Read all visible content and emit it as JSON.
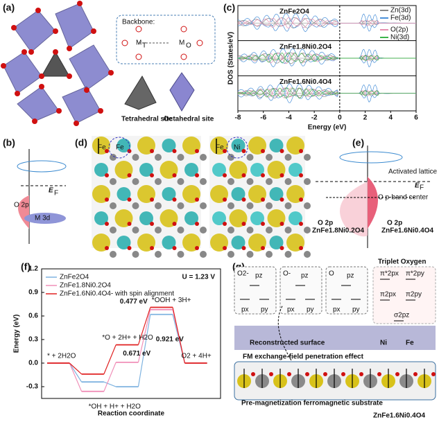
{
  "panels": {
    "a": {
      "label": "(a)",
      "backbone": "Backbone:",
      "m_t": "M",
      "m_t_sub": "T",
      "m_o": "M",
      "m_o_sub": "O",
      "atom_o": "O",
      "tetrahedral": "Tetrahedral site",
      "octahedral": "Octahedral site"
    },
    "b": {
      "label": "(b)",
      "ef": "E",
      "ef_sub": "F",
      "o2p": "O 2p",
      "m3d": "M 3d"
    },
    "c": {
      "label": "(c)",
      "subplots": [
        "ZnFe2O4",
        "ZnFe1.8Ni0.2O4",
        "ZnFe1.6Ni0.4O4"
      ],
      "legend": [
        {
          "name": "Zn(3d)",
          "color": "#888888"
        },
        {
          "name": "Fe(3d)",
          "color": "#4a90d9"
        },
        {
          "name": "O(2p)",
          "color": "#e58fb0"
        },
        {
          "name": "Ni(3d)",
          "color": "#3cb44b"
        }
      ],
      "xlabel": "Energy (eV)",
      "ylabel": "DOS (States/eV)",
      "xlim": [
        -8,
        6
      ],
      "xticks": [
        -8,
        -6,
        -4,
        -2,
        0,
        2,
        4,
        6
      ]
    },
    "d": {
      "label": "(d)",
      "fe": "Fe",
      "ni": "Ni"
    },
    "e": {
      "label": "(e)",
      "activated": "Activated lattice O",
      "ef": "E",
      "ef_sub": "F",
      "center": "O p-band center",
      "left_orbital": "O 2p",
      "left_material": "ZnFe1.8Ni0.2O4",
      "right_orbital": "O 2p",
      "right_material": "ZnFe1.6Ni0.4O4"
    },
    "g": {
      "label": "(g)",
      "triplet": "Triplet Oxygen",
      "boxes": [
        {
          "ion": "O2-",
          "pz": "pz",
          "px": "px",
          "py": "py"
        },
        {
          "ion": "O-",
          "pz": "pz",
          "px": "px",
          "py": "py"
        },
        {
          "ion": "O",
          "pz": "pz",
          "px": "px",
          "py": "py"
        }
      ],
      "mo": [
        "π*2px",
        "π*2py",
        "π2px",
        "π2py",
        "σ2pz"
      ],
      "surface": "Reconstructed surface",
      "ni": "Ni",
      "fe": "Fe",
      "effect": "FM exchange-field penetration effect",
      "substrate": "Pre-magnetization ferromagnetic substrate",
      "material": "ZnFe1.6Ni0.4O4"
    }
  },
  "chart_data": {
    "type": "line",
    "label": "(f)",
    "annotation": "U = 1.23 V",
    "xlabel": "Reaction coordinate",
    "ylabel": "Energy (eV)",
    "categories": [
      "* + 2H2O",
      "*OH + H+ + H2O",
      "*O + 2H+ + H2O",
      "*OOH + 3H+",
      "O2 + 4H+"
    ],
    "series": [
      {
        "name": "ZnFe2O4",
        "color": "#7fb3e0",
        "values": [
          0,
          -0.24,
          -0.301,
          0.62,
          0
        ]
      },
      {
        "name": "ZnFe1.8Ni0.2O4",
        "color": "#f08fb8",
        "values": [
          0,
          -0.36,
          0.01,
          0.681,
          0
        ]
      },
      {
        "name": "ZnFe1.6Ni0.4O4- with spin alignment",
        "color": "#e02020",
        "values": [
          0,
          -0.14,
          0.233,
          0.71,
          0
        ]
      }
    ],
    "gap_labels": [
      "0.921 eV",
      "0.671 eV",
      "0.477 eV"
    ],
    "ylim": [
      -0.45,
      1.2
    ],
    "yticks": [
      -0.3,
      {
        "value": 0,
        "label": "0.0"
      },
      0.3,
      0.6,
      0.9,
      1.2
    ]
  }
}
